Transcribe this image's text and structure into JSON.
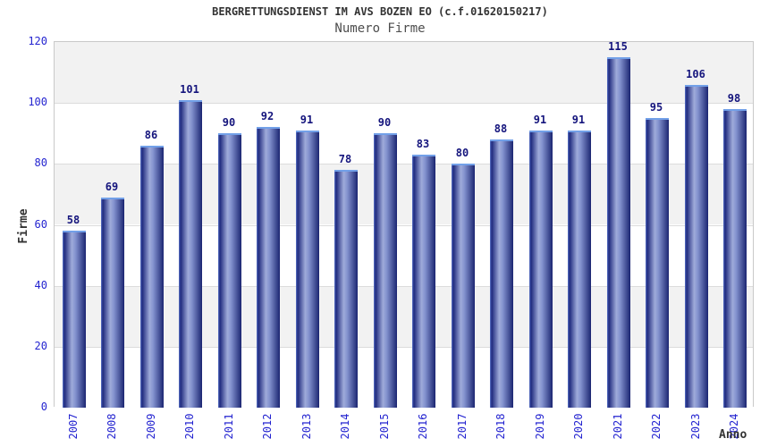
{
  "chart_data": {
    "type": "bar",
    "title": "BERGRETTUNGSDIENST IM AVS BOZEN EO (c.f.01620150217)",
    "subtitle": "Numero Firme",
    "xlabel": "Anno",
    "ylabel": "Firme",
    "categories": [
      "2007",
      "2008",
      "2009",
      "2010",
      "2011",
      "2012",
      "2013",
      "2014",
      "2015",
      "2016",
      "2017",
      "2018",
      "2019",
      "2020",
      "2021",
      "2022",
      "2023",
      "2024"
    ],
    "values": [
      58,
      69,
      86,
      101,
      90,
      92,
      91,
      78,
      90,
      83,
      80,
      88,
      91,
      91,
      115,
      95,
      106,
      98
    ],
    "y_ticks": [
      0,
      20,
      40,
      60,
      80,
      100,
      120
    ],
    "ylim": [
      0,
      120
    ],
    "legend": "none",
    "grid": "horizontal-bands-alternating",
    "bar_labels_shown": true,
    "x_labels_rotated_deg": 90,
    "colors": {
      "title": "#333333",
      "subtitle": "#4d4d4d",
      "axis_tick_text": "#2424d0",
      "bar_value_text": "#15157d",
      "axis_title_text": "#333333",
      "band_gray": "#f2f2f2",
      "band_white": "#ffffff",
      "gridline": "#dcdcdc",
      "plot_border": "#c9c9c9",
      "bar_dark": "#1f2a7e",
      "bar_light": "#9fabda",
      "bar_top_highlight": "#72a0e8"
    }
  }
}
